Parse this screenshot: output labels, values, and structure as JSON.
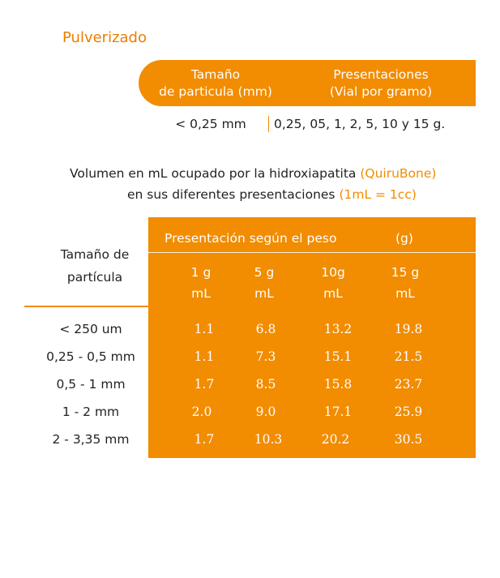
{
  "title": "Pulverizado",
  "top_table": {
    "header_size": [
      "Tamaño",
      "de particula (mm)"
    ],
    "header_presentation": [
      "Presentaciones",
      "(Vial por gramo)"
    ],
    "size_value": "< 0,25 mm",
    "presentation_value": "0,25, 05, 1, 2, 5, 10 y 15 g."
  },
  "description": {
    "line1_text": "Volumen en mL ocupado por la hidroxiapatita ",
    "line1_highlight": "(QuiruBone)",
    "line2_text": "en sus diferentes presentaciones ",
    "line2_highlight": "(1mL = 1cc)"
  },
  "volume_table": {
    "size_header": [
      "Tamaño de",
      "partícula"
    ],
    "presentation_label": "Presentación según el peso",
    "unit_label": "(g)",
    "columns": [
      {
        "weight": "1 g",
        "unit": "mL"
      },
      {
        "weight": "5 g",
        "unit": "mL"
      },
      {
        "weight": "10g",
        "unit": "mL"
      },
      {
        "weight": "15 g",
        "unit": "mL"
      }
    ],
    "rows": [
      {
        "size": "< 250 um",
        "values": [
          "1.1",
          "6.8",
          "13.2",
          "19.8"
        ]
      },
      {
        "size": "0,25 - 0,5 mm",
        "values": [
          "1.1",
          "7.3",
          "15.1",
          "21.5"
        ]
      },
      {
        "size": "0,5 - 1 mm",
        "values": [
          "1.7",
          "8.5",
          "15.8",
          "23.7"
        ]
      },
      {
        "size": "1 - 2 mm",
        "values": [
          "2.0",
          "9.0",
          "17.1",
          "25.9"
        ]
      },
      {
        "size": "2 - 3,35 mm",
        "values": [
          "1.7",
          "10.3",
          "20.2",
          "30.5"
        ]
      }
    ]
  },
  "colors": {
    "accent": "#f28c00",
    "title": "#ef7d00"
  }
}
